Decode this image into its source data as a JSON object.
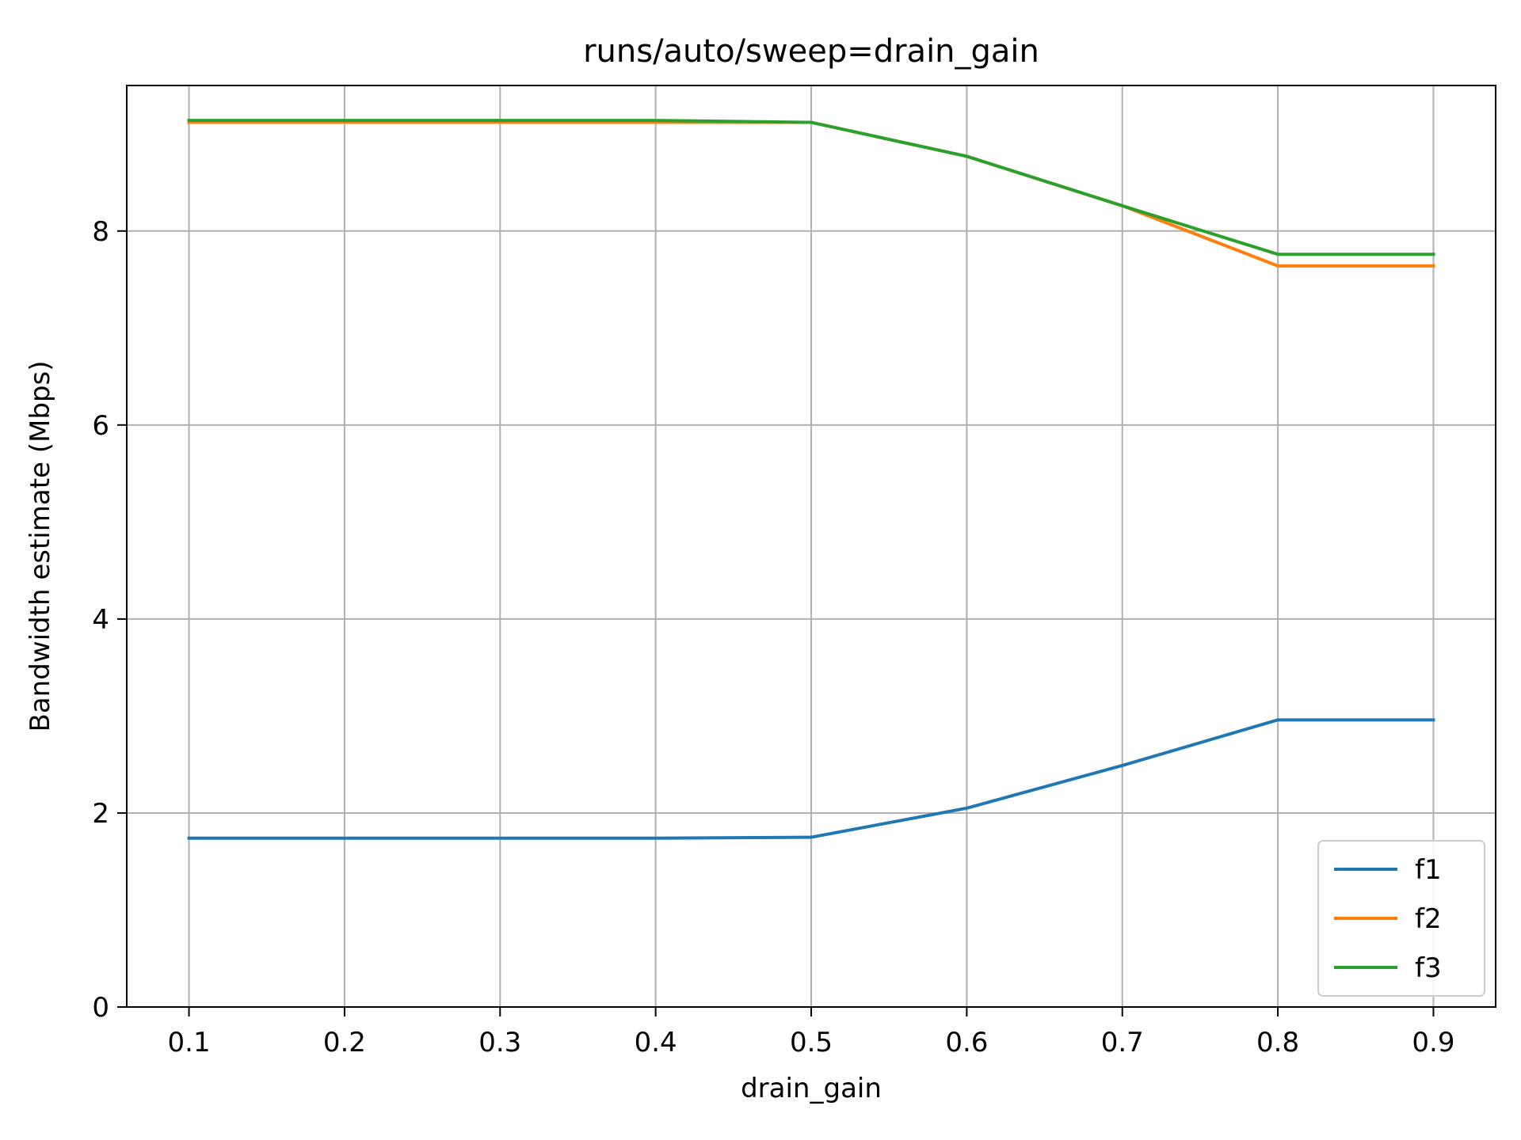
{
  "chart_data": {
    "type": "line",
    "title": "runs/auto/sweep=drain_gain",
    "xlabel": "drain_gain",
    "ylabel": "Bandwidth estimate (Mbps)",
    "x": [
      0.1,
      0.2,
      0.3,
      0.4,
      0.5,
      0.6,
      0.7,
      0.8,
      0.9
    ],
    "xticks": [
      "0.1",
      "0.2",
      "0.3",
      "0.4",
      "0.5",
      "0.6",
      "0.7",
      "0.8",
      "0.9"
    ],
    "yticks": [
      "0",
      "2",
      "4",
      "6",
      "8"
    ],
    "xlim": [
      0.06,
      0.94
    ],
    "ylim": [
      0,
      9.5
    ],
    "grid": true,
    "legend_position": "bottom-right",
    "series": [
      {
        "name": "f1",
        "color": "#1f77b4",
        "values": [
          1.74,
          1.74,
          1.74,
          1.74,
          1.75,
          2.05,
          2.49,
          2.96,
          2.96
        ]
      },
      {
        "name": "f2",
        "color": "#ff7f0e",
        "values": [
          9.12,
          9.12,
          9.12,
          9.12,
          9.12,
          8.77,
          8.26,
          7.64,
          7.64
        ]
      },
      {
        "name": "f3",
        "color": "#2ca02c",
        "values": [
          9.14,
          9.14,
          9.14,
          9.14,
          9.12,
          8.77,
          8.26,
          7.76,
          7.76
        ]
      }
    ]
  }
}
